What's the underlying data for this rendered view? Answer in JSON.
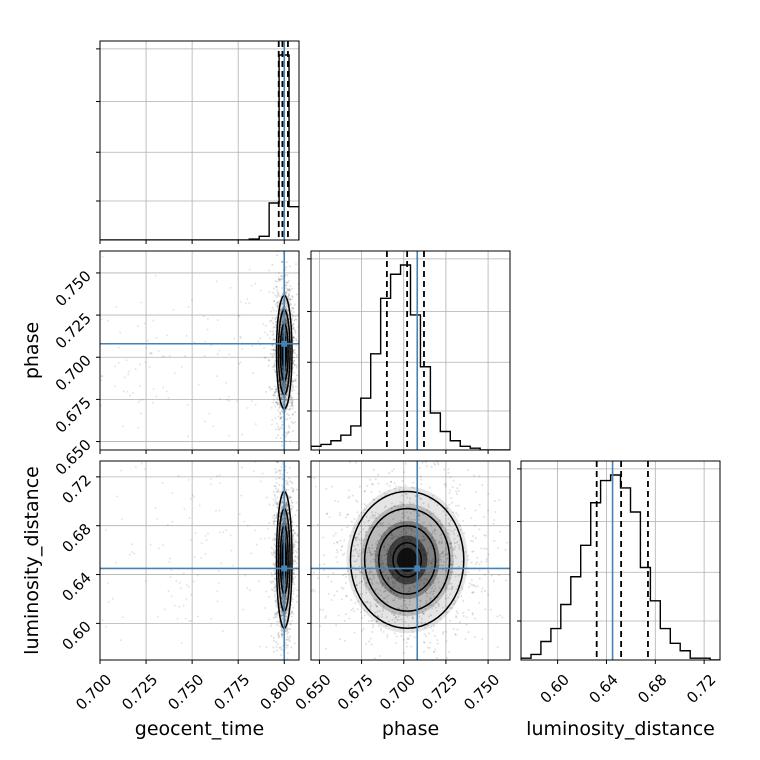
{
  "colors": {
    "truth": "#4682b4",
    "hist": "#000000",
    "quantile": "#000000",
    "grid": "#b0b0b0",
    "scatter": "#000000"
  },
  "chart_data": {
    "type": "corner",
    "parameters": [
      "geocent_time",
      "phase",
      "luminosity_distance"
    ],
    "truths": {
      "geocent_time": 0.8,
      "phase": 0.708,
      "luminosity_distance": 0.645
    },
    "ranges": {
      "geocent_time": [
        0.7,
        0.808
      ],
      "phase": [
        0.645,
        0.763
      ],
      "luminosity_distance": [
        0.57,
        0.733
      ]
    },
    "ticks": {
      "geocent_time": [
        "0.700",
        "0.725",
        "0.750",
        "0.775",
        "0.800"
      ],
      "phase": [
        "0.650",
        "0.675",
        "0.700",
        "0.725",
        "0.750"
      ],
      "luminosity_distance": [
        "0.60",
        "0.64",
        "0.68",
        "0.72"
      ]
    },
    "quantiles": {
      "geocent_time": [
        0.797,
        0.799,
        0.802
      ],
      "phase": [
        0.69,
        0.702,
        0.712
      ],
      "luminosity_distance": [
        0.632,
        0.652,
        0.674
      ]
    },
    "marginals": {
      "geocent_time": {
        "bins": [
          0.7,
          0.7054,
          0.7108,
          0.7162,
          0.7216,
          0.727,
          0.7324,
          0.7378,
          0.7432,
          0.7486,
          0.754,
          0.7594,
          0.7648,
          0.7702,
          0.7756,
          0.781,
          0.7864,
          0.7918,
          0.7972,
          0.8026,
          0.808
        ],
        "counts": [
          0,
          0,
          0,
          0,
          0,
          0,
          0,
          0,
          0,
          0,
          0,
          0,
          0,
          0,
          0,
          0.005,
          0.02,
          0.2,
          1.0,
          0.18
        ]
      },
      "phase": {
        "bins": [
          0.645,
          0.6509,
          0.6568,
          0.6627,
          0.6686,
          0.6745,
          0.6804,
          0.6863,
          0.6922,
          0.6981,
          0.704,
          0.7099,
          0.7158,
          0.7217,
          0.7276,
          0.7335,
          0.7394,
          0.7453,
          0.7512,
          0.7571,
          0.763
        ],
        "counts": [
          0.02,
          0.03,
          0.05,
          0.08,
          0.13,
          0.28,
          0.52,
          0.82,
          0.95,
          1.0,
          0.73,
          0.45,
          0.2,
          0.1,
          0.05,
          0.02,
          0.01,
          0,
          0,
          0
        ]
      },
      "luminosity_distance": {
        "bins": [
          0.57,
          0.5782,
          0.5863,
          0.5945,
          0.6026,
          0.6108,
          0.6189,
          0.6271,
          0.6352,
          0.6434,
          0.6515,
          0.6597,
          0.6678,
          0.676,
          0.6841,
          0.6923,
          0.7004,
          0.7086,
          0.7167,
          0.7249,
          0.733
        ],
        "counts": [
          0.01,
          0.03,
          0.1,
          0.17,
          0.3,
          0.45,
          0.62,
          0.85,
          0.97,
          1.0,
          0.93,
          0.8,
          0.5,
          0.32,
          0.17,
          0.09,
          0.05,
          0.01,
          0.01,
          0
        ]
      }
    },
    "joint": {
      "phase|geocent_time": {
        "center": [
          0.8,
          0.703
        ],
        "sigma": [
          0.0015,
          0.012
        ],
        "outliers": 140
      },
      "luminosity_distance|geocent_time": {
        "center": [
          0.8,
          0.652
        ],
        "sigma": [
          0.0015,
          0.02
        ],
        "outliers": 140
      },
      "luminosity_distance|phase": {
        "center": [
          0.702,
          0.652
        ],
        "sigma": [
          0.012,
          0.02
        ],
        "outliers": 0
      }
    },
    "grid": true
  }
}
